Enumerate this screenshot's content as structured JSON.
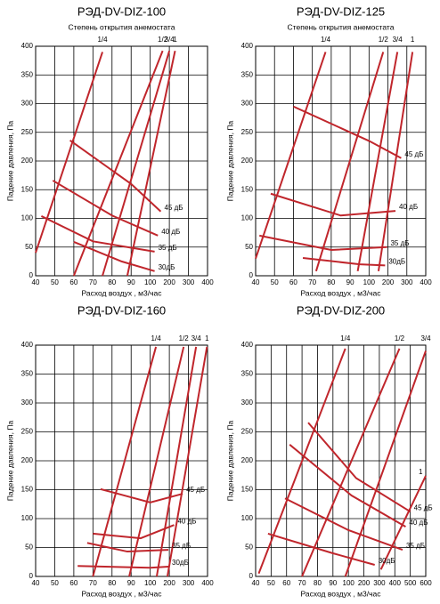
{
  "chart_data": [
    {
      "type": "line",
      "title": "РЭД-DV-DIZ-100",
      "subtitle": "Степень открытия анемостата",
      "x_label": "Расход воздух , м3/час",
      "y_label": "Падение давления, Па",
      "xlim": [
        40,
        400
      ],
      "xticks": [
        40,
        50,
        60,
        70,
        80,
        90,
        100,
        200,
        300,
        400
      ],
      "ylim": [
        0,
        400
      ],
      "yticks": [
        0,
        50,
        100,
        150,
        200,
        250,
        300,
        350,
        400
      ],
      "grid": true,
      "series": [
        {
          "name": "1/4",
          "color": "#c0262c",
          "x": [
            40,
            75
          ],
          "values": [
            40,
            390
          ]
        },
        {
          "name": "1/2",
          "color": "#c0262c",
          "x": [
            60,
            165
          ],
          "values": [
            0,
            392
          ]
        },
        {
          "name": "3/4",
          "color": "#c0262c",
          "x": [
            75,
            200
          ],
          "values": [
            0,
            392
          ]
        },
        {
          "name": "1",
          "color": "#c0262c",
          "x": [
            88,
            230
          ],
          "values": [
            0,
            392
          ]
        },
        {
          "name": "45 дБ",
          "color": "#c0262c",
          "x": [
            58,
            90,
            155
          ],
          "values": [
            236,
            160,
            112
          ]
        },
        {
          "name": "40 дБ",
          "color": "#c0262c",
          "x": [
            49,
            80,
            140
          ],
          "values": [
            166,
            105,
            70
          ]
        },
        {
          "name": "35 дБ",
          "color": "#c0262c",
          "x": [
            43,
            70,
            123
          ],
          "values": [
            104,
            60,
            42
          ]
        },
        {
          "name": "30дБ",
          "color": "#c0262c",
          "x": [
            60,
            85,
            123
          ],
          "values": [
            59,
            25,
            8
          ]
        }
      ]
    },
    {
      "type": "line",
      "title": "РЭД-DV-DIZ-125",
      "subtitle": "Степень открытия анемостата",
      "x_label": "Расход воздух , м3/час",
      "y_label": "Падение давления, Па",
      "xlim": [
        40,
        400
      ],
      "xticks": [
        40,
        50,
        60,
        70,
        80,
        90,
        100,
        200,
        300,
        400
      ],
      "ylim": [
        0,
        400
      ],
      "yticks": [
        0,
        50,
        100,
        150,
        200,
        250,
        300,
        350,
        400
      ],
      "grid": true,
      "series": [
        {
          "name": "1/4",
          "color": "#c0262c",
          "x": [
            40,
            77
          ],
          "values": [
            30,
            390
          ]
        },
        {
          "name": "1/2",
          "color": "#c0262c",
          "x": [
            72,
            175
          ],
          "values": [
            8,
            390
          ]
        },
        {
          "name": "3/4",
          "color": "#c0262c",
          "x": [
            94,
            250
          ],
          "values": [
            8,
            390
          ]
        },
        {
          "name": "1",
          "color": "#c0262c",
          "x": [
            150,
            330
          ],
          "values": [
            8,
            390
          ]
        },
        {
          "name": "45 дБ",
          "color": "#c0262c",
          "x": [
            60,
            100,
            270
          ],
          "values": [
            295,
            235,
            205
          ]
        },
        {
          "name": "40 дБ",
          "color": "#c0262c",
          "x": [
            48,
            85,
            240
          ],
          "values": [
            143,
            105,
            113
          ]
        },
        {
          "name": "35 дБ",
          "color": "#c0262c",
          "x": [
            42,
            80,
            195
          ],
          "values": [
            70,
            45,
            50
          ]
        },
        {
          "name": "30дБ",
          "color": "#c0262c",
          "x": [
            65,
            95,
            185
          ],
          "values": [
            31,
            20,
            18
          ]
        }
      ]
    },
    {
      "type": "line",
      "title": "РЭД-DV-DIZ-160",
      "x_label": "Расход воздух , м3/час",
      "y_label": "Падение давления, Па",
      "xlim": [
        40,
        400
      ],
      "xticks": [
        40,
        50,
        60,
        70,
        80,
        90,
        100,
        200,
        300,
        400
      ],
      "ylim": [
        0,
        400
      ],
      "yticks": [
        0,
        50,
        100,
        150,
        200,
        250,
        300,
        350,
        400
      ],
      "grid": true,
      "series": [
        {
          "name": "1/4",
          "color": "#c0262c",
          "x": [
            70,
            130
          ],
          "values": [
            0,
            397
          ]
        },
        {
          "name": "1/2",
          "color": "#c0262c",
          "x": [
            89,
            275
          ],
          "values": [
            0,
            397
          ]
        },
        {
          "name": "3/4",
          "color": "#c0262c",
          "x": [
            134,
            340
          ],
          "values": [
            0,
            397
          ]
        },
        {
          "name": "1",
          "color": "#c0262c",
          "x": [
            190,
            397
          ],
          "values": [
            0,
            397
          ]
        },
        {
          "name": "45 дБ",
          "color": "#c0262c",
          "x": [
            74,
            100,
            270
          ],
          "values": [
            151,
            128,
            143
          ]
        },
        {
          "name": "40 дБ",
          "color": "#c0262c",
          "x": [
            70,
            95,
            225
          ],
          "values": [
            74,
            66,
            89
          ]
        },
        {
          "name": "35 дБ",
          "color": "#c0262c",
          "x": [
            67,
            88,
            195
          ],
          "values": [
            58,
            43,
            46
          ]
        },
        {
          "name": "30дБ",
          "color": "#c0262c",
          "x": [
            62,
            100,
            195
          ],
          "values": [
            18,
            15,
            17
          ]
        }
      ]
    },
    {
      "type": "line",
      "title": "РЭД-DV-DIZ-200",
      "x_label": "Расход воздух , м3/час",
      "y_label": "Падение давления, Па",
      "xlim": [
        40,
        600
      ],
      "xticks": [
        40,
        50,
        60,
        70,
        80,
        90,
        100,
        200,
        300,
        400,
        500,
        600
      ],
      "ylim": [
        0,
        400
      ],
      "yticks": [
        0,
        50,
        100,
        150,
        200,
        250,
        300,
        350,
        400
      ],
      "grid": true,
      "series": [
        {
          "name": "1/4",
          "color": "#c0262c",
          "x": [
            42,
            98
          ],
          "values": [
            5,
            394
          ]
        },
        {
          "name": "1/2",
          "color": "#c0262c",
          "x": [
            70,
            430
          ],
          "values": [
            0,
            394
          ]
        },
        {
          "name": "3/4",
          "color": "#c0262c",
          "x": [
            98,
            600
          ],
          "values": [
            0,
            390
          ]
        },
        {
          "name": "1",
          "color": "#c0262c",
          "x": [
            310,
            600
          ],
          "values": [
            12,
            174
          ]
        },
        {
          "name": "45 дБ",
          "color": "#c0262c",
          "x": [
            74,
            150,
            500
          ],
          "values": [
            266,
            170,
            112
          ]
        },
        {
          "name": "40 дБ",
          "color": "#c0262c",
          "x": [
            62,
            120,
            470
          ],
          "values": [
            228,
            140,
            86
          ]
        },
        {
          "name": "35 дБ",
          "color": "#c0262c",
          "x": [
            59,
            100,
            450
          ],
          "values": [
            135,
            80,
            46
          ]
        },
        {
          "name": "30дБ",
          "color": "#c0262c",
          "x": [
            48,
            90,
            270
          ],
          "values": [
            74,
            40,
            20
          ]
        }
      ]
    }
  ]
}
